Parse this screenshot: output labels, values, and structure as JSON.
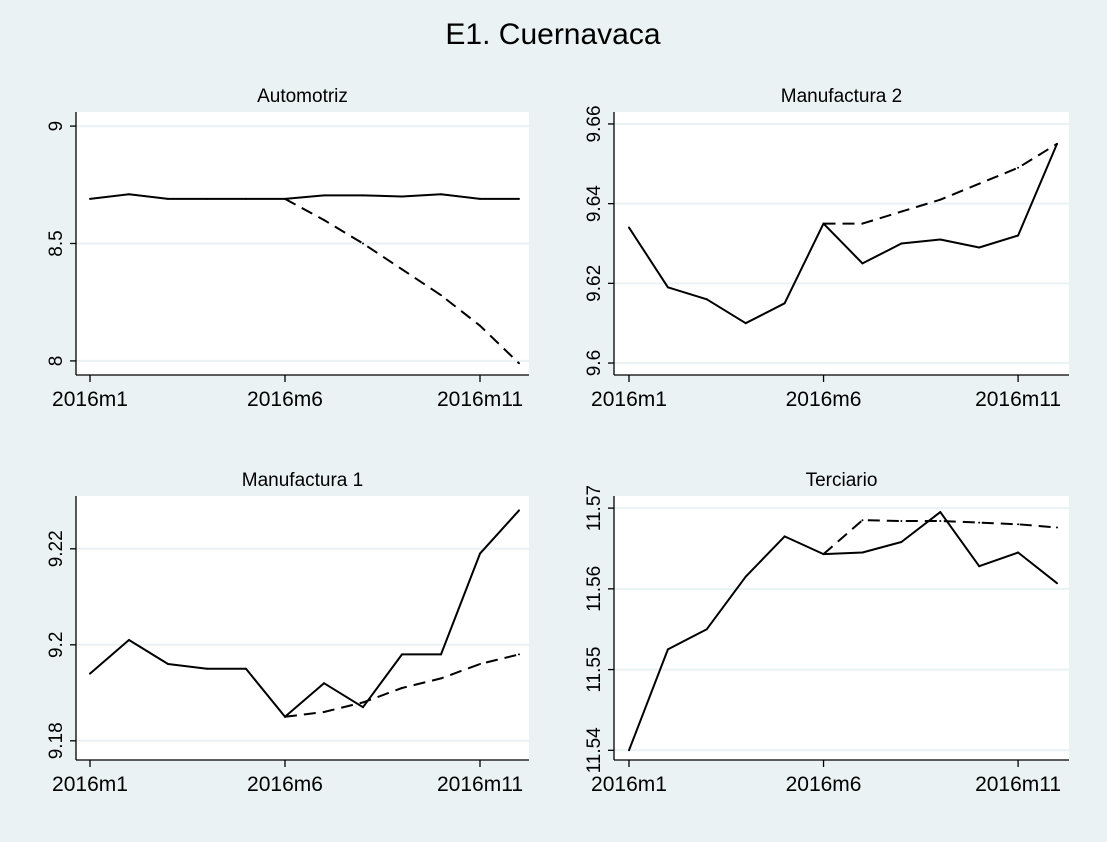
{
  "figure": {
    "title": "E1. Cuernavaca"
  },
  "chart_data": [
    {
      "type": "line",
      "title": "Automotriz",
      "x": [
        "2016m1",
        "2016m2",
        "2016m3",
        "2016m4",
        "2016m5",
        "2016m6",
        "2016m7",
        "2016m8",
        "2016m9",
        "2016m10",
        "2016m11",
        "2016m12"
      ],
      "xticks": [
        "2016m1",
        "2016m6",
        "2016m11"
      ],
      "yticks": [
        "8",
        "8.5",
        "9"
      ],
      "ylim": [
        7.94,
        9.06
      ],
      "grid": true,
      "series": [
        {
          "style": "solid",
          "values": [
            8.69,
            8.71,
            8.69,
            8.69,
            8.69,
            8.69,
            8.705,
            8.705,
            8.7,
            8.71,
            8.69,
            8.69
          ]
        },
        {
          "style": "dashed",
          "values": [
            null,
            null,
            null,
            null,
            null,
            8.69,
            8.6,
            8.5,
            8.39,
            8.28,
            8.15,
            7.99
          ]
        }
      ]
    },
    {
      "type": "line",
      "title": "Manufactura 2",
      "x": [
        "2016m1",
        "2016m2",
        "2016m3",
        "2016m4",
        "2016m5",
        "2016m6",
        "2016m7",
        "2016m8",
        "2016m9",
        "2016m10",
        "2016m11",
        "2016m12"
      ],
      "xticks": [
        "2016m1",
        "2016m6",
        "2016m11"
      ],
      "yticks": [
        "9.6",
        "9.62",
        "9.64",
        "9.66"
      ],
      "ylim": [
        9.597,
        9.663
      ],
      "grid": true,
      "series": [
        {
          "style": "solid",
          "values": [
            9.634,
            9.619,
            9.616,
            9.61,
            9.615,
            9.635,
            9.625,
            9.63,
            9.631,
            9.629,
            9.632,
            9.655
          ]
        },
        {
          "style": "dashed",
          "values": [
            null,
            null,
            null,
            null,
            null,
            9.635,
            9.635,
            9.638,
            9.641,
            9.645,
            9.649,
            9.655
          ]
        }
      ]
    },
    {
      "type": "line",
      "title": "Manufactura 1",
      "x": [
        "2016m1",
        "2016m2",
        "2016m3",
        "2016m4",
        "2016m5",
        "2016m6",
        "2016m7",
        "2016m8",
        "2016m9",
        "2016m10",
        "2016m11",
        "2016m12"
      ],
      "xticks": [
        "2016m1",
        "2016m6",
        "2016m11"
      ],
      "yticks": [
        "9.18",
        "9.2",
        "9.22"
      ],
      "ylim": [
        9.176,
        9.231
      ],
      "grid": true,
      "series": [
        {
          "style": "solid",
          "values": [
            9.194,
            9.201,
            9.196,
            9.195,
            9.195,
            9.185,
            9.192,
            9.187,
            9.198,
            9.198,
            9.219,
            9.228
          ]
        },
        {
          "style": "dashed",
          "values": [
            null,
            null,
            null,
            null,
            null,
            9.185,
            9.186,
            9.188,
            9.191,
            9.193,
            9.196,
            9.198
          ]
        }
      ]
    },
    {
      "type": "line",
      "title": "Terciario",
      "x": [
        "2016m1",
        "2016m2",
        "2016m3",
        "2016m4",
        "2016m5",
        "2016m6",
        "2016m7",
        "2016m8",
        "2016m9",
        "2016m10",
        "2016m11",
        "2016m12"
      ],
      "xticks": [
        "2016m1",
        "2016m6",
        "2016m11"
      ],
      "yticks": [
        "11.54",
        "11.55",
        "11.56",
        "11.57"
      ],
      "ylim": [
        11.5388,
        11.5715
      ],
      "grid": true,
      "series": [
        {
          "style": "solid",
          "values": [
            11.54,
            11.5525,
            11.555,
            11.5615,
            11.5665,
            11.5643,
            11.5645,
            11.5658,
            11.5695,
            11.5628,
            11.5645,
            11.5607
          ]
        },
        {
          "style": "dashed",
          "values": [
            null,
            null,
            null,
            null,
            null,
            11.5643,
            11.5685,
            11.5684,
            11.5684,
            11.5682,
            11.568,
            11.5676
          ]
        }
      ]
    }
  ]
}
